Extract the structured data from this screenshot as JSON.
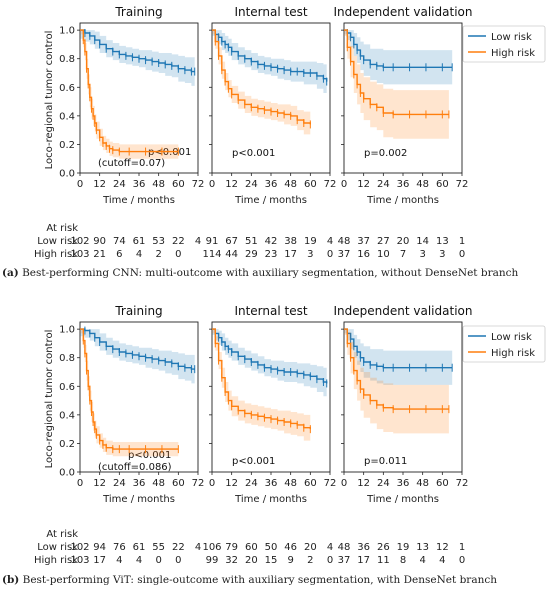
{
  "colors": {
    "low": "#1f77b4",
    "high": "#ff7f0e",
    "low_band": "#1f77b4",
    "high_band": "#ff7f0e"
  },
  "ylabel": "Loco-regional tumor control",
  "xlabel": "Time / months",
  "legend": {
    "low": "Low risk",
    "high": "High risk"
  },
  "at_risk_title": "At risk",
  "risk_row_labels": [
    "Low risk",
    "High risk"
  ],
  "figures": [
    {
      "caption_label": "(a)",
      "caption_text": " Best-performing CNN: multi-outcome with auxiliary segmentation, without DenseNet branch",
      "panels": [
        {
          "title": "Training",
          "pvalue": "p<0.001",
          "cutoff": "(cutoff=0.07)",
          "at_risk": {
            "low": [
              "102",
              "90",
              "74",
              "61",
              "53",
              "22",
              "4"
            ],
            "high": [
              "103",
              "21",
              "6",
              "4",
              "2",
              "0",
              ""
            ]
          }
        },
        {
          "title": "Internal test",
          "pvalue": "p<0.001",
          "cutoff": "",
          "at_risk": {
            "low": [
              "91",
              "67",
              "51",
              "42",
              "38",
              "19",
              "4"
            ],
            "high": [
              "114",
              "44",
              "29",
              "23",
              "17",
              "3",
              "0"
            ]
          }
        },
        {
          "title": "Independent validation",
          "pvalue": "p=0.002",
          "cutoff": "",
          "at_risk": {
            "low": [
              "48",
              "37",
              "27",
              "20",
              "14",
              "13",
              "1"
            ],
            "high": [
              "37",
              "16",
              "10",
              "7",
              "3",
              "3",
              "0"
            ]
          }
        }
      ]
    },
    {
      "caption_label": "(b)",
      "caption_text": " Best-performing ViT: single-outcome with auxiliary segmentation, with DenseNet branch",
      "panels": [
        {
          "title": "Training",
          "pvalue": "p<0.001",
          "cutoff": "(cutoff=0.086)",
          "at_risk": {
            "low": [
              "102",
              "94",
              "76",
              "61",
              "55",
              "22",
              "4"
            ],
            "high": [
              "103",
              "17",
              "4",
              "4",
              "0",
              "0",
              ""
            ]
          }
        },
        {
          "title": "Internal test",
          "pvalue": "p<0.001",
          "cutoff": "",
          "at_risk": {
            "low": [
              "106",
              "79",
              "60",
              "50",
              "46",
              "20",
              "4"
            ],
            "high": [
              "99",
              "32",
              "20",
              "15",
              "9",
              "2",
              "0"
            ]
          }
        },
        {
          "title": "Independent validation",
          "pvalue": "p=0.011",
          "cutoff": "",
          "at_risk": {
            "low": [
              "48",
              "36",
              "26",
              "19",
              "13",
              "12",
              "1"
            ],
            "high": [
              "37",
              "17",
              "11",
              "8",
              "4",
              "4",
              "0"
            ]
          }
        }
      ]
    }
  ],
  "chart_data": [
    {
      "type": "line",
      "title": "Training",
      "xlabel": "Time / months",
      "ylabel": "Loco-regional tumor control",
      "xlim": [
        0,
        72
      ],
      "ylim": [
        0,
        1.05
      ],
      "xticks": [
        0,
        12,
        24,
        36,
        48,
        60,
        72
      ],
      "yticks": [
        0.0,
        0.2,
        0.4,
        0.6,
        0.8,
        1.0
      ],
      "series": [
        {
          "name": "Low risk",
          "x": [
            0,
            3,
            6,
            9,
            12,
            16,
            20,
            24,
            28,
            32,
            36,
            40,
            44,
            48,
            52,
            56,
            60,
            64,
            68,
            70
          ],
          "y": [
            1.0,
            0.98,
            0.96,
            0.93,
            0.9,
            0.87,
            0.85,
            0.83,
            0.82,
            0.81,
            0.8,
            0.79,
            0.78,
            0.77,
            0.76,
            0.75,
            0.73,
            0.72,
            0.71,
            0.71
          ],
          "band": [
            0.06,
            0.06,
            0.06,
            0.06,
            0.06,
            0.06,
            0.06,
            0.06,
            0.06,
            0.06,
            0.06,
            0.07,
            0.07,
            0.07,
            0.08,
            0.08,
            0.09,
            0.09,
            0.1,
            0.1
          ]
        },
        {
          "name": "High risk",
          "x": [
            0,
            2,
            3,
            4,
            5,
            6,
            7,
            8,
            9,
            10,
            12,
            14,
            16,
            18,
            20,
            24,
            30,
            40,
            50,
            60
          ],
          "y": [
            1.0,
            0.93,
            0.85,
            0.73,
            0.62,
            0.53,
            0.45,
            0.4,
            0.35,
            0.3,
            0.25,
            0.21,
            0.19,
            0.17,
            0.16,
            0.15,
            0.15,
            0.15,
            0.15,
            0.15
          ],
          "band": [
            0.03,
            0.05,
            0.06,
            0.07,
            0.07,
            0.07,
            0.07,
            0.07,
            0.06,
            0.06,
            0.06,
            0.05,
            0.05,
            0.05,
            0.05,
            0.05,
            0.05,
            0.05,
            0.05,
            0.05
          ]
        }
      ]
    },
    {
      "type": "line",
      "title": "Internal test",
      "xlabel": "Time / months",
      "xlim": [
        0,
        72
      ],
      "ylim": [
        0,
        1.05
      ],
      "xticks": [
        0,
        12,
        24,
        36,
        48,
        60,
        72
      ],
      "series": [
        {
          "name": "Low risk",
          "x": [
            0,
            2,
            4,
            6,
            8,
            10,
            12,
            16,
            20,
            24,
            28,
            32,
            36,
            40,
            44,
            48,
            52,
            56,
            60,
            64,
            68,
            70
          ],
          "y": [
            1.0,
            0.97,
            0.95,
            0.92,
            0.9,
            0.88,
            0.85,
            0.82,
            0.8,
            0.78,
            0.76,
            0.75,
            0.74,
            0.73,
            0.72,
            0.71,
            0.71,
            0.7,
            0.7,
            0.68,
            0.66,
            0.64
          ],
          "band": [
            0.04,
            0.05,
            0.05,
            0.06,
            0.06,
            0.06,
            0.06,
            0.06,
            0.06,
            0.06,
            0.06,
            0.06,
            0.06,
            0.07,
            0.07,
            0.07,
            0.07,
            0.08,
            0.08,
            0.09,
            0.1,
            0.1
          ]
        },
        {
          "name": "High risk",
          "x": [
            0,
            2,
            4,
            6,
            8,
            10,
            12,
            16,
            20,
            24,
            28,
            32,
            36,
            40,
            44,
            48,
            52,
            56,
            60
          ],
          "y": [
            1.0,
            0.92,
            0.82,
            0.72,
            0.64,
            0.59,
            0.55,
            0.51,
            0.48,
            0.46,
            0.45,
            0.44,
            0.43,
            0.42,
            0.41,
            0.4,
            0.37,
            0.35,
            0.34
          ],
          "band": [
            0.03,
            0.05,
            0.06,
            0.06,
            0.06,
            0.06,
            0.06,
            0.06,
            0.06,
            0.06,
            0.06,
            0.06,
            0.06,
            0.06,
            0.07,
            0.07,
            0.07,
            0.08,
            0.08
          ]
        }
      ]
    },
    {
      "type": "line",
      "title": "Independent validation",
      "xlabel": "Time / months",
      "xlim": [
        0,
        72
      ],
      "ylim": [
        0,
        1.05
      ],
      "xticks": [
        0,
        12,
        24,
        36,
        48,
        60,
        72
      ],
      "series": [
        {
          "name": "Low risk",
          "x": [
            0,
            2,
            4,
            6,
            8,
            10,
            12,
            16,
            20,
            24,
            30,
            40,
            50,
            60,
            66
          ],
          "y": [
            1.0,
            0.98,
            0.95,
            0.9,
            0.86,
            0.82,
            0.79,
            0.76,
            0.75,
            0.74,
            0.74,
            0.74,
            0.74,
            0.74,
            0.74
          ],
          "band": [
            0.03,
            0.05,
            0.07,
            0.08,
            0.09,
            0.1,
            0.11,
            0.11,
            0.12,
            0.12,
            0.12,
            0.12,
            0.12,
            0.12,
            0.12
          ]
        },
        {
          "name": "High risk",
          "x": [
            0,
            2,
            4,
            6,
            8,
            10,
            12,
            16,
            20,
            24,
            30,
            40,
            50,
            60,
            64
          ],
          "y": [
            1.0,
            0.88,
            0.78,
            0.69,
            0.62,
            0.56,
            0.52,
            0.48,
            0.46,
            0.42,
            0.41,
            0.41,
            0.41,
            0.41,
            0.41
          ],
          "band": [
            0.04,
            0.08,
            0.11,
            0.13,
            0.14,
            0.14,
            0.15,
            0.16,
            0.16,
            0.17,
            0.17,
            0.17,
            0.17,
            0.17,
            0.17
          ]
        }
      ]
    },
    {
      "type": "line",
      "title": "Training",
      "xlabel": "Time / months",
      "ylabel": "Loco-regional tumor control",
      "xlim": [
        0,
        72
      ],
      "ylim": [
        0,
        1.05
      ],
      "xticks": [
        0,
        12,
        24,
        36,
        48,
        60,
        72
      ],
      "yticks": [
        0.0,
        0.2,
        0.4,
        0.6,
        0.8,
        1.0
      ],
      "series": [
        {
          "name": "Low risk",
          "x": [
            0,
            3,
            6,
            9,
            12,
            16,
            20,
            24,
            28,
            32,
            36,
            40,
            44,
            48,
            52,
            56,
            60,
            64,
            68,
            70
          ],
          "y": [
            1.0,
            0.99,
            0.97,
            0.94,
            0.91,
            0.88,
            0.86,
            0.84,
            0.83,
            0.82,
            0.81,
            0.8,
            0.79,
            0.78,
            0.77,
            0.76,
            0.74,
            0.73,
            0.72,
            0.72
          ],
          "band": [
            0.05,
            0.05,
            0.05,
            0.06,
            0.06,
            0.06,
            0.06,
            0.06,
            0.06,
            0.06,
            0.06,
            0.07,
            0.07,
            0.07,
            0.08,
            0.08,
            0.09,
            0.09,
            0.1,
            0.1
          ]
        },
        {
          "name": "High risk",
          "x": [
            0,
            2,
            3,
            4,
            5,
            6,
            7,
            8,
            9,
            10,
            12,
            14,
            16,
            20,
            24,
            30,
            40,
            50,
            60
          ],
          "y": [
            1.0,
            0.92,
            0.83,
            0.71,
            0.6,
            0.5,
            0.42,
            0.35,
            0.3,
            0.26,
            0.22,
            0.19,
            0.17,
            0.16,
            0.16,
            0.16,
            0.16,
            0.16,
            0.16
          ],
          "band": [
            0.03,
            0.05,
            0.06,
            0.07,
            0.07,
            0.07,
            0.07,
            0.06,
            0.06,
            0.06,
            0.05,
            0.05,
            0.05,
            0.05,
            0.05,
            0.05,
            0.05,
            0.05,
            0.05
          ]
        }
      ]
    },
    {
      "type": "line",
      "title": "Internal test",
      "xlabel": "Time / months",
      "xlim": [
        0,
        72
      ],
      "ylim": [
        0,
        1.05
      ],
      "xticks": [
        0,
        12,
        24,
        36,
        48,
        60,
        72
      ],
      "series": [
        {
          "name": "Low risk",
          "x": [
            0,
            2,
            4,
            6,
            8,
            10,
            12,
            16,
            20,
            24,
            28,
            32,
            36,
            40,
            44,
            48,
            52,
            56,
            60,
            64,
            68,
            70
          ],
          "y": [
            1.0,
            0.97,
            0.94,
            0.91,
            0.88,
            0.86,
            0.84,
            0.81,
            0.79,
            0.77,
            0.75,
            0.73,
            0.72,
            0.71,
            0.7,
            0.7,
            0.69,
            0.68,
            0.67,
            0.65,
            0.63,
            0.62
          ],
          "band": [
            0.04,
            0.05,
            0.05,
            0.06,
            0.06,
            0.06,
            0.06,
            0.06,
            0.06,
            0.06,
            0.06,
            0.06,
            0.06,
            0.07,
            0.07,
            0.07,
            0.07,
            0.08,
            0.08,
            0.09,
            0.1,
            0.1
          ]
        },
        {
          "name": "High risk",
          "x": [
            0,
            2,
            4,
            6,
            8,
            10,
            12,
            16,
            20,
            24,
            28,
            32,
            36,
            40,
            44,
            48,
            52,
            56,
            60
          ],
          "y": [
            1.0,
            0.9,
            0.78,
            0.66,
            0.56,
            0.5,
            0.46,
            0.43,
            0.41,
            0.4,
            0.39,
            0.38,
            0.37,
            0.36,
            0.35,
            0.34,
            0.33,
            0.31,
            0.3
          ],
          "band": [
            0.03,
            0.05,
            0.06,
            0.07,
            0.07,
            0.07,
            0.07,
            0.07,
            0.07,
            0.07,
            0.07,
            0.07,
            0.07,
            0.07,
            0.08,
            0.08,
            0.08,
            0.09,
            0.09
          ]
        }
      ]
    },
    {
      "type": "line",
      "title": "Independent validation",
      "xlabel": "Time / months",
      "xlim": [
        0,
        72
      ],
      "ylim": [
        0,
        1.05
      ],
      "xticks": [
        0,
        12,
        24,
        36,
        48,
        60,
        72
      ],
      "series": [
        {
          "name": "Low risk",
          "x": [
            0,
            2,
            4,
            6,
            8,
            10,
            12,
            16,
            20,
            24,
            30,
            40,
            50,
            60,
            66
          ],
          "y": [
            1.0,
            0.97,
            0.93,
            0.88,
            0.84,
            0.8,
            0.77,
            0.75,
            0.74,
            0.73,
            0.73,
            0.73,
            0.73,
            0.73,
            0.73
          ],
          "band": [
            0.03,
            0.05,
            0.07,
            0.08,
            0.09,
            0.1,
            0.11,
            0.11,
            0.12,
            0.12,
            0.12,
            0.12,
            0.12,
            0.12,
            0.12
          ]
        },
        {
          "name": "High risk",
          "x": [
            0,
            2,
            4,
            6,
            8,
            10,
            12,
            16,
            20,
            24,
            30,
            40,
            50,
            60,
            64
          ],
          "y": [
            1.0,
            0.9,
            0.8,
            0.71,
            0.64,
            0.58,
            0.54,
            0.5,
            0.47,
            0.45,
            0.44,
            0.44,
            0.44,
            0.44,
            0.44
          ],
          "band": [
            0.04,
            0.08,
            0.11,
            0.13,
            0.14,
            0.15,
            0.16,
            0.16,
            0.17,
            0.17,
            0.17,
            0.17,
            0.17,
            0.17,
            0.17
          ]
        }
      ]
    }
  ]
}
